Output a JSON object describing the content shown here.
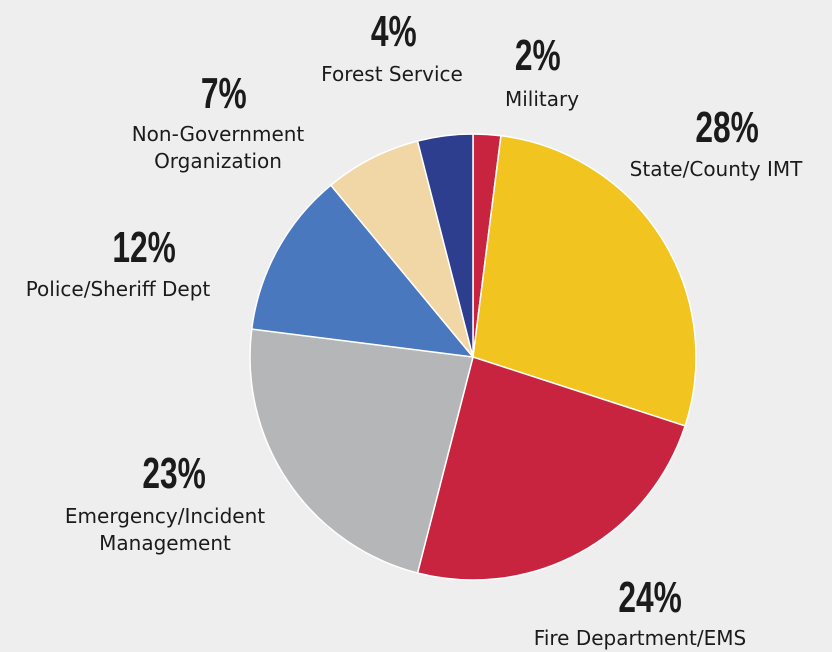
{
  "chart_data": {
    "type": "pie",
    "start_angle_deg": 0,
    "direction": "clockwise",
    "slices": [
      {
        "label": "Military",
        "lines": [
          "Military"
        ],
        "value": 2,
        "display": "2%",
        "color": "#c9243f"
      },
      {
        "label": "State/County IMT",
        "lines": [
          "State/County IMT"
        ],
        "value": 28,
        "display": "28%",
        "color": "#f2c41f"
      },
      {
        "label": "Fire Department/EMS",
        "lines": [
          "Fire Department/EMS"
        ],
        "value": 24,
        "display": "24%",
        "color": "#c9243f"
      },
      {
        "label": "Emergency/Incident Management",
        "lines": [
          "Emergency/Incident",
          "Management"
        ],
        "value": 23,
        "display": "23%",
        "color": "#b5b6b8"
      },
      {
        "label": "Police/Sheriff Dept",
        "lines": [
          "Police/Sheriff Dept"
        ],
        "value": 12,
        "display": "12%",
        "color": "#4a78be"
      },
      {
        "label": "Non-Government Organization",
        "lines": [
          "Non-Government",
          "Organization"
        ],
        "value": 7,
        "display": "7%",
        "color": "#f1d7a5"
      },
      {
        "label": "Forest Service",
        "lines": [
          "Forest Service"
        ],
        "value": 4,
        "display": "4%",
        "color": "#2e3e8f"
      }
    ]
  }
}
